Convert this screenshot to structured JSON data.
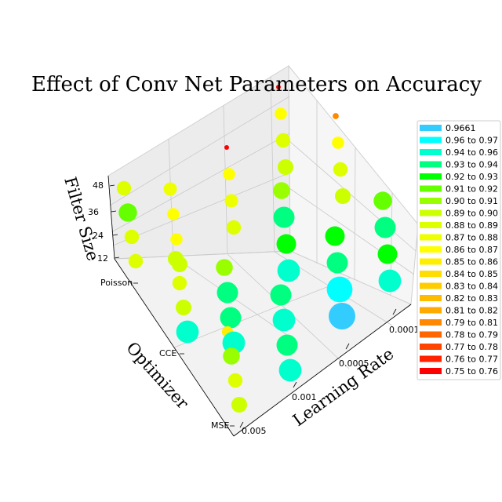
{
  "chart_data": {
    "type": "scatter",
    "title": "Effect of Conv Net Parameters on Accuracy",
    "xlabel": "Learning Rate",
    "ylabel": "Optimizer",
    "zlabel": "Filter Size",
    "x_ticks": [
      "0.0001",
      "0.0005",
      "0.001",
      "0.005"
    ],
    "y_ticks": [
      "Poisson",
      "CCE",
      "MSE"
    ],
    "z_ticks": [
      "12",
      "24",
      "36",
      "48"
    ],
    "grid": true,
    "legend_position": "right",
    "legend": [
      {
        "label": "0.9661",
        "color": "#33ccff"
      },
      {
        "label": "0.96 to 0.97",
        "color": "#00ffff"
      },
      {
        "label": "0.94 to 0.96",
        "color": "#00ffcc"
      },
      {
        "label": "0.93 to 0.94",
        "color": "#00ff80"
      },
      {
        "label": "0.92 to 0.93",
        "color": "#00ff00"
      },
      {
        "label": "0.91 to 0.92",
        "color": "#66ff00"
      },
      {
        "label": "0.90 to 0.91",
        "color": "#99ff00"
      },
      {
        "label": "0.89 to 0.90",
        "color": "#ccff00"
      },
      {
        "label": "0.88 to 0.89",
        "color": "#ddff00"
      },
      {
        "label": "0.87 to 0.88",
        "color": "#eeff00"
      },
      {
        "label": "0.86 to 0.87",
        "color": "#ffff00"
      },
      {
        "label": "0.85 to 0.86",
        "color": "#ffee00"
      },
      {
        "label": "0.84 to 0.85",
        "color": "#ffdd00"
      },
      {
        "label": "0.83 to 0.84",
        "color": "#ffcc00"
      },
      {
        "label": "0.82 to 0.83",
        "color": "#ffbb00"
      },
      {
        "label": "0.81 to 0.82",
        "color": "#ffaa00"
      },
      {
        "label": "0.79 to 0.81",
        "color": "#ff8800"
      },
      {
        "label": "0.78 to 0.79",
        "color": "#ff6600"
      },
      {
        "label": "0.77 to 0.78",
        "color": "#ff4400"
      },
      {
        "label": "0.76 to 0.77",
        "color": "#ff2200"
      },
      {
        "label": "0.75 to 0.76",
        "color": "#ff0000"
      }
    ],
    "points": [
      {
        "learning_rate": "0.0001",
        "optimizer": "Poisson",
        "filter_size": 48,
        "accuracy": 0.75
      },
      {
        "learning_rate": "0.0001",
        "optimizer": "Poisson",
        "filter_size": 36,
        "accuracy": 0.86
      },
      {
        "learning_rate": "0.0001",
        "optimizer": "Poisson",
        "filter_size": 24,
        "accuracy": 0.88
      },
      {
        "learning_rate": "0.0001",
        "optimizer": "Poisson",
        "filter_size": 12,
        "accuracy": 0.89
      },
      {
        "learning_rate": "0.0005",
        "optimizer": "Poisson",
        "filter_size": 48,
        "accuracy": 0.75
      },
      {
        "learning_rate": "0.0005",
        "optimizer": "Poisson",
        "filter_size": 36,
        "accuracy": 0.86
      },
      {
        "learning_rate": "0.0005",
        "optimizer": "Poisson",
        "filter_size": 24,
        "accuracy": 0.87
      },
      {
        "learning_rate": "0.0005",
        "optimizer": "Poisson",
        "filter_size": 12,
        "accuracy": 0.88
      },
      {
        "learning_rate": "0.001",
        "optimizer": "Poisson",
        "filter_size": 48,
        "accuracy": 0.87
      },
      {
        "learning_rate": "0.001",
        "optimizer": "Poisson",
        "filter_size": 36,
        "accuracy": 0.86
      },
      {
        "learning_rate": "0.001",
        "optimizer": "Poisson",
        "filter_size": 24,
        "accuracy": 0.86
      },
      {
        "learning_rate": "0.001",
        "optimizer": "Poisson",
        "filter_size": 12,
        "accuracy": 0.89
      },
      {
        "learning_rate": "0.005",
        "optimizer": "Poisson",
        "filter_size": 48,
        "accuracy": 0.88
      },
      {
        "learning_rate": "0.005",
        "optimizer": "Poisson",
        "filter_size": 36,
        "accuracy": 0.91
      },
      {
        "learning_rate": "0.005",
        "optimizer": "Poisson",
        "filter_size": 24,
        "accuracy": 0.88
      },
      {
        "learning_rate": "0.005",
        "optimizer": "Poisson",
        "filter_size": 12,
        "accuracy": 0.88
      },
      {
        "learning_rate": "0.0001",
        "optimizer": "CCE",
        "filter_size": 48,
        "accuracy": 0.79
      },
      {
        "learning_rate": "0.0001",
        "optimizer": "CCE",
        "filter_size": 36,
        "accuracy": 0.86
      },
      {
        "learning_rate": "0.0001",
        "optimizer": "CCE",
        "filter_size": 24,
        "accuracy": 0.88
      },
      {
        "learning_rate": "0.0001",
        "optimizer": "CCE",
        "filter_size": 12,
        "accuracy": 0.89
      },
      {
        "learning_rate": "0.0005",
        "optimizer": "CCE",
        "filter_size": 48,
        "accuracy": 0.9
      },
      {
        "learning_rate": "0.0005",
        "optimizer": "CCE",
        "filter_size": 36,
        "accuracy": 0.93
      },
      {
        "learning_rate": "0.0005",
        "optimizer": "CCE",
        "filter_size": 24,
        "accuracy": 0.92
      },
      {
        "learning_rate": "0.0005",
        "optimizer": "CCE",
        "filter_size": 12,
        "accuracy": 0.94
      },
      {
        "learning_rate": "0.001",
        "optimizer": "CCE",
        "filter_size": 48,
        "accuracy": 0.9
      },
      {
        "learning_rate": "0.001",
        "optimizer": "CCE",
        "filter_size": 36,
        "accuracy": 0.93
      },
      {
        "learning_rate": "0.001",
        "optimizer": "CCE",
        "filter_size": 24,
        "accuracy": 0.93
      },
      {
        "learning_rate": "0.001",
        "optimizer": "CCE",
        "filter_size": 12,
        "accuracy": 0.94
      },
      {
        "learning_rate": "0.005",
        "optimizer": "CCE",
        "filter_size": 48,
        "accuracy": 0.89
      },
      {
        "learning_rate": "0.005",
        "optimizer": "CCE",
        "filter_size": 36,
        "accuracy": 0.88
      },
      {
        "learning_rate": "0.005",
        "optimizer": "CCE",
        "filter_size": 24,
        "accuracy": 0.89
      },
      {
        "learning_rate": "0.005",
        "optimizer": "CCE",
        "filter_size": 12,
        "accuracy": 0.94
      },
      {
        "learning_rate": "0.0001",
        "optimizer": "MSE",
        "filter_size": 48,
        "accuracy": 0.91
      },
      {
        "learning_rate": "0.0001",
        "optimizer": "MSE",
        "filter_size": 36,
        "accuracy": 0.93
      },
      {
        "learning_rate": "0.0001",
        "optimizer": "MSE",
        "filter_size": 24,
        "accuracy": 0.92
      },
      {
        "learning_rate": "0.0001",
        "optimizer": "MSE",
        "filter_size": 12,
        "accuracy": 0.94
      },
      {
        "learning_rate": "0.0005",
        "optimizer": "MSE",
        "filter_size": 48,
        "accuracy": 0.92
      },
      {
        "learning_rate": "0.0005",
        "optimizer": "MSE",
        "filter_size": 36,
        "accuracy": 0.93
      },
      {
        "learning_rate": "0.0005",
        "optimizer": "MSE",
        "filter_size": 24,
        "accuracy": 0.96
      },
      {
        "learning_rate": "0.0005",
        "optimizer": "MSE",
        "filter_size": 12,
        "accuracy": 0.9661
      },
      {
        "learning_rate": "0.001",
        "optimizer": "MSE",
        "filter_size": 48,
        "accuracy": 0.93
      },
      {
        "learning_rate": "0.001",
        "optimizer": "MSE",
        "filter_size": 36,
        "accuracy": 0.94
      },
      {
        "learning_rate": "0.001",
        "optimizer": "MSE",
        "filter_size": 24,
        "accuracy": 0.93
      },
      {
        "learning_rate": "0.001",
        "optimizer": "MSE",
        "filter_size": 12,
        "accuracy": 0.94
      },
      {
        "learning_rate": "0.005",
        "optimizer": "MSE",
        "filter_size": 48,
        "accuracy": 0.85
      },
      {
        "learning_rate": "0.005",
        "optimizer": "MSE",
        "filter_size": 36,
        "accuracy": 0.9
      },
      {
        "learning_rate": "0.005",
        "optimizer": "MSE",
        "filter_size": 24,
        "accuracy": 0.88
      },
      {
        "learning_rate": "0.005",
        "optimizer": "MSE",
        "filter_size": 12,
        "accuracy": 0.89
      }
    ]
  }
}
